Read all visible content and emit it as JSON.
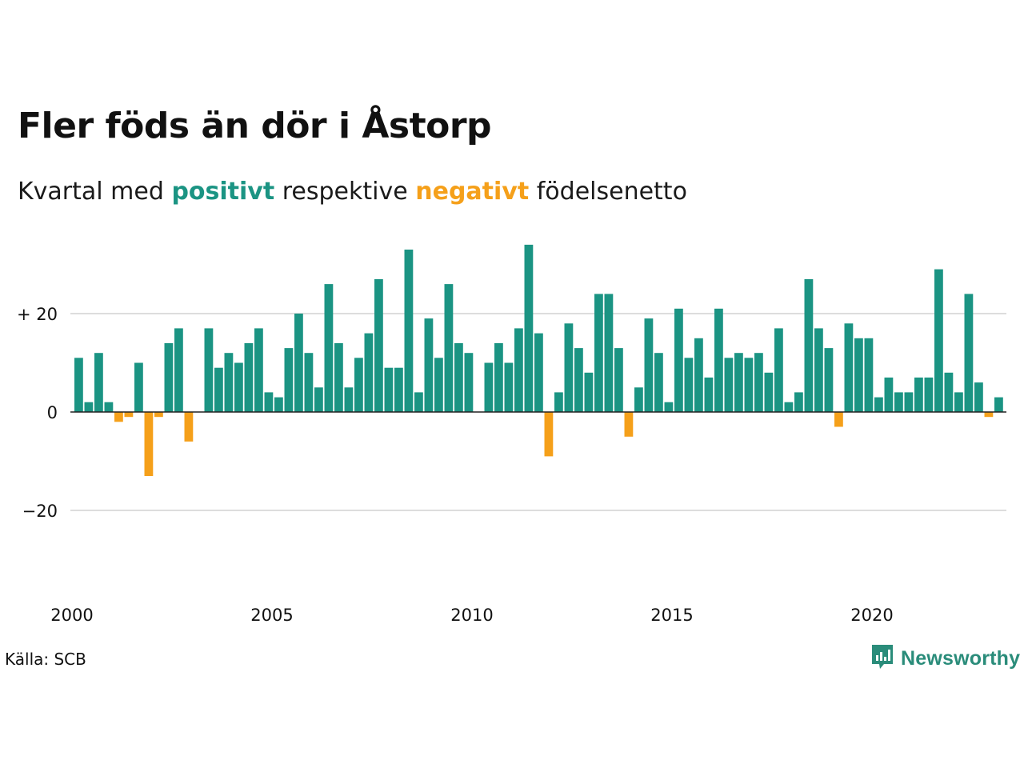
{
  "title": "Fler föds än dör i Åstorp",
  "subtitle": {
    "prefix": "Kvartal med",
    "positive_word": "positivt",
    "middle": "respektive",
    "negative_word": "negativt",
    "suffix": "födelsenetto"
  },
  "source": "Källa: SCB",
  "brand": {
    "name": "Newsworthy",
    "icon": "newsworthy-logo-icon",
    "color": "#2a8c7a"
  },
  "colors": {
    "positive": "#1b9483",
    "negative": "#f5a01a",
    "grid": "#dddddd",
    "zero_line": "#222222"
  },
  "chart_data": {
    "type": "bar",
    "title": "Fler föds än dör i Åstorp",
    "xlabel": "",
    "ylabel": "",
    "x_start": "2000 Q1",
    "period": "quarter",
    "x_ticks": [
      "2000",
      "2005",
      "2010",
      "2015",
      "2020"
    ],
    "y_ticks": [
      {
        "value": 20,
        "label": "+ 20"
      },
      {
        "value": 0,
        "label": "0"
      },
      {
        "value": -20,
        "label": "−20"
      }
    ],
    "ylim": [
      -38,
      34
    ],
    "grid": true,
    "legend": "none",
    "values": [
      11,
      2,
      12,
      2,
      -2,
      -1,
      10,
      -13,
      -1,
      14,
      17,
      -6,
      0,
      17,
      9,
      12,
      10,
      14,
      17,
      4,
      3,
      13,
      20,
      12,
      5,
      26,
      14,
      5,
      11,
      16,
      27,
      9,
      9,
      33,
      4,
      19,
      11,
      26,
      14,
      12,
      0,
      10,
      14,
      10,
      17,
      34,
      16,
      -9,
      4,
      18,
      13,
      8,
      24,
      24,
      13,
      -5,
      5,
      19,
      12,
      2,
      21,
      11,
      15,
      7,
      21,
      11,
      12,
      11,
      12,
      8,
      17,
      2,
      4,
      27,
      17,
      13,
      -3,
      18,
      15,
      15,
      3,
      7,
      4,
      4,
      7,
      7,
      29,
      8,
      4,
      24,
      6,
      -1,
      3
    ]
  }
}
